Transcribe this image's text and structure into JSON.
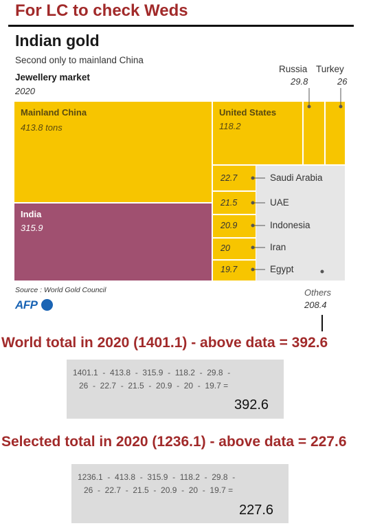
{
  "header": {
    "title": "For LC to check Weds"
  },
  "chart_data": {
    "type": "treemap",
    "title": "Indian gold",
    "subtitle": "Second only to mainland China",
    "category_label": "Jewellery market",
    "year": "2020",
    "source": "Source : World Gold Council",
    "brand": "AFP",
    "unit": "tons",
    "items": [
      {
        "name": "Mainland China",
        "value": 413.8,
        "value_text": "413.8 tons",
        "color": "#f7c500"
      },
      {
        "name": "India",
        "value": 315.9,
        "value_text": "315.9",
        "color": "#a05070"
      },
      {
        "name": "United States",
        "value": 118.2,
        "value_text": "118.2",
        "color": "#f7c500"
      },
      {
        "name": "Russia",
        "value": 29.8,
        "value_text": "29.8",
        "color": "#f7c500"
      },
      {
        "name": "Turkey",
        "value": 26,
        "value_text": "26",
        "color": "#f7c500"
      },
      {
        "name": "Saudi Arabia",
        "value": 22.7,
        "value_text": "22.7",
        "color": "#f7c500"
      },
      {
        "name": "UAE",
        "value": 21.5,
        "value_text": "21.5",
        "color": "#f7c500"
      },
      {
        "name": "Indonesia",
        "value": 20.9,
        "value_text": "20.9",
        "color": "#f7c500"
      },
      {
        "name": "Iran",
        "value": 20,
        "value_text": "20",
        "color": "#f7c500"
      },
      {
        "name": "Egypt",
        "value": 19.7,
        "value_text": "19.7",
        "color": "#f7c500"
      },
      {
        "name": "Others",
        "value": 208.4,
        "value_text": "208.4",
        "color": "#e6e6e6"
      }
    ]
  },
  "world": {
    "heading": "World total in 2020 (1401.1) - above data = 392.6",
    "line1": "1401.1  -  413.8  -  315.9  -  118.2  -  29.8  -",
    "line2": "26  -  22.7  -  21.5  -  20.9  -  20  -  19.7 =",
    "result": "392.6"
  },
  "selected": {
    "heading": "Selected total in 2020 (1236.1) - above data = 227.6",
    "line1": "1236.1  -  413.8  -  315.9  -  118.2  -  29.8  -",
    "line2": "26  -  22.7  -  21.5  -  20.9  -  20  -  19.7 =",
    "result": "227.6"
  }
}
